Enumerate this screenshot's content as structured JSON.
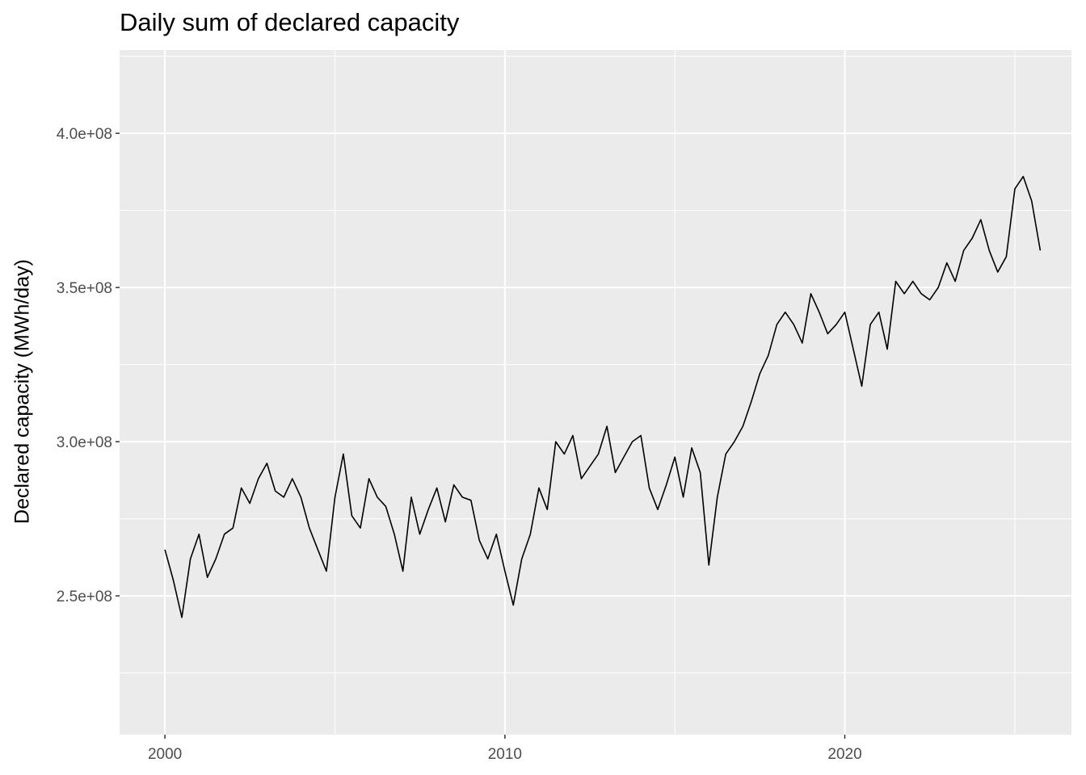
{
  "chart_data": {
    "type": "line",
    "title": "Daily sum of declared capacity",
    "xlabel": "",
    "ylabel": "Declared capacity (MWh/day)",
    "x_axis": {
      "type": "date",
      "range": [
        "1998-09-01",
        "2026-09-01"
      ],
      "ticks": [
        "2000",
        "2010",
        "2020"
      ]
    },
    "y_axis": {
      "range": [
        205000000,
        427000000
      ],
      "ticks": [
        "2.5e+08",
        "3.0e+08",
        "3.5e+08",
        "4.0e+08"
      ],
      "tick_values": [
        250000000,
        300000000,
        350000000,
        400000000
      ]
    },
    "grid": true,
    "colors": {
      "panel": "#ebebeb",
      "grid": "#ffffff",
      "line": "#000000"
    },
    "series": [
      {
        "x": [
          "2000-01-01",
          "2000-04-01",
          "2000-07-01",
          "2000-10-01",
          "2001-01-01",
          "2001-04-01",
          "2001-07-01",
          "2001-10-01",
          "2002-01-01",
          "2002-04-01",
          "2002-07-01",
          "2002-10-01",
          "2003-01-01",
          "2003-04-01",
          "2003-07-01",
          "2003-10-01",
          "2004-01-01",
          "2004-04-01",
          "2004-07-01",
          "2004-10-01",
          "2005-01-01",
          "2005-04-01",
          "2005-07-01",
          "2005-10-01",
          "2006-01-01",
          "2006-04-01",
          "2006-07-01",
          "2006-10-01",
          "2007-01-01",
          "2007-04-01",
          "2007-07-01",
          "2007-10-01",
          "2008-01-01",
          "2008-04-01",
          "2008-07-01",
          "2008-10-01",
          "2009-01-01",
          "2009-04-01",
          "2009-07-01",
          "2009-10-01",
          "2010-01-01",
          "2010-04-01",
          "2010-07-01",
          "2010-10-01",
          "2011-01-01",
          "2011-04-01",
          "2011-07-01",
          "2011-10-01",
          "2012-01-01",
          "2012-04-01",
          "2012-07-01",
          "2012-10-01",
          "2013-01-01",
          "2013-04-01",
          "2013-07-01",
          "2013-10-01",
          "2014-01-01",
          "2014-04-01",
          "2014-07-01",
          "2014-10-01",
          "2015-01-01",
          "2015-04-01",
          "2015-07-01",
          "2015-10-01",
          "2016-01-01",
          "2016-04-01",
          "2016-07-01",
          "2016-10-01",
          "2017-01-01",
          "2017-04-01",
          "2017-07-01",
          "2017-10-01",
          "2018-01-01",
          "2018-04-01",
          "2018-07-01",
          "2018-10-01",
          "2019-01-01",
          "2019-04-01",
          "2019-07-01",
          "2019-10-01",
          "2020-01-01",
          "2020-04-01",
          "2020-07-01",
          "2020-10-01",
          "2021-01-01",
          "2021-04-01",
          "2021-07-01",
          "2021-10-01",
          "2022-01-01",
          "2022-04-01",
          "2022-07-01",
          "2022-10-01",
          "2023-01-01",
          "2023-04-01",
          "2023-07-01",
          "2023-10-01",
          "2024-01-01",
          "2024-04-01",
          "2024-07-01",
          "2024-10-01",
          "2025-01-01",
          "2025-04-01",
          "2025-07-01",
          "2025-10-01"
        ],
        "y": [
          265000000,
          255000000,
          243000000,
          262000000,
          270000000,
          256000000,
          262000000,
          270000000,
          272000000,
          285000000,
          280000000,
          288000000,
          293000000,
          284000000,
          282000000,
          288000000,
          282000000,
          272000000,
          265000000,
          258000000,
          282000000,
          296000000,
          276000000,
          272000000,
          288000000,
          282000000,
          279000000,
          270000000,
          258000000,
          282000000,
          270000000,
          278000000,
          285000000,
          274000000,
          286000000,
          282000000,
          281000000,
          268000000,
          262000000,
          270000000,
          258000000,
          247000000,
          262000000,
          270000000,
          285000000,
          278000000,
          300000000,
          296000000,
          302000000,
          288000000,
          292000000,
          296000000,
          305000000,
          290000000,
          295000000,
          300000000,
          302000000,
          285000000,
          278000000,
          286000000,
          295000000,
          282000000,
          298000000,
          290000000,
          260000000,
          282000000,
          296000000,
          300000000,
          305000000,
          313000000,
          322000000,
          328000000,
          338000000,
          342000000,
          338000000,
          332000000,
          348000000,
          342000000,
          335000000,
          338000000,
          342000000,
          330000000,
          318000000,
          338000000,
          342000000,
          330000000,
          352000000,
          348000000,
          352000000,
          348000000,
          346000000,
          350000000,
          358000000,
          352000000,
          362000000,
          366000000,
          372000000,
          362000000,
          355000000,
          360000000,
          382000000,
          386000000,
          378000000,
          362000000
        ]
      }
    ]
  }
}
